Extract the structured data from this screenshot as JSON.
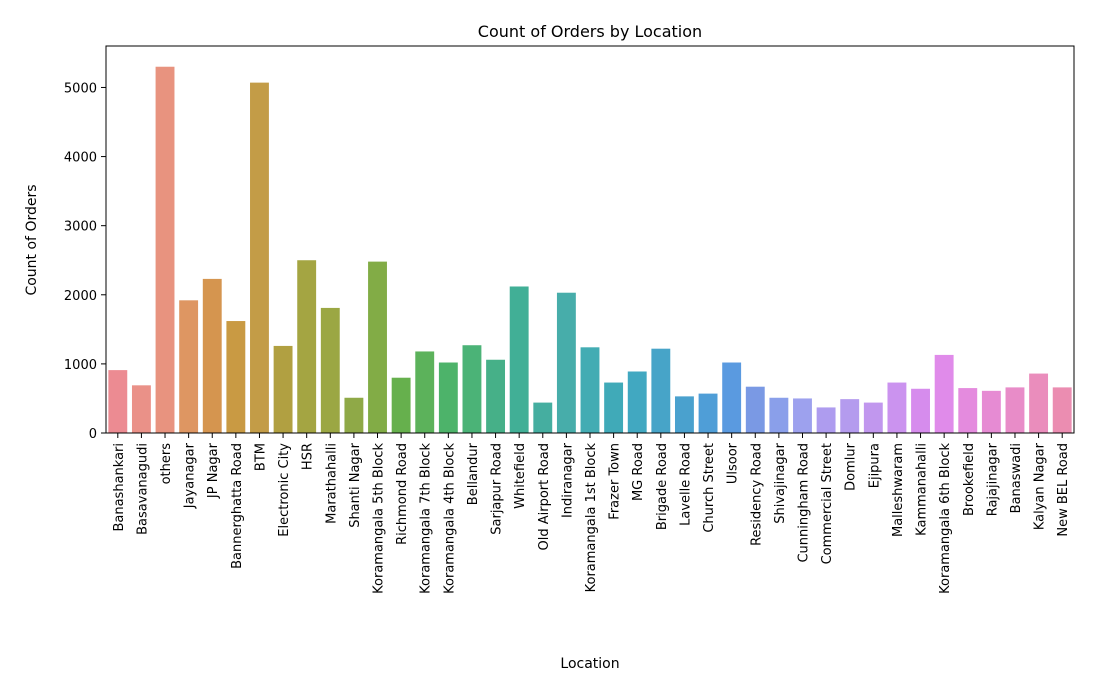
{
  "chart_data": {
    "type": "bar",
    "title": "Count of Orders by Location",
    "xlabel": "Location",
    "ylabel": "Count of Orders",
    "ylim": [
      0,
      5600
    ],
    "yticks": [
      0,
      1000,
      2000,
      3000,
      4000,
      5000
    ],
    "grid": false,
    "legend": "none",
    "categories": [
      "Banashankari",
      "Basavanagudi",
      "others",
      "Jayanagar",
      "JP Nagar",
      "Bannerghatta Road",
      "BTM",
      "Electronic City",
      "HSR",
      "Marathahalli",
      "Shanti Nagar",
      "Koramangala 5th Block",
      "Richmond Road",
      "Koramangala 7th Block",
      "Koramangala 4th Block",
      "Bellandur",
      "Sarjapur Road",
      "Whitefield",
      "Old Airport Road",
      "Indiranagar",
      "Koramangala 1st Block",
      "Frazer Town",
      "MG Road",
      "Brigade Road",
      "Lavelle Road",
      "Church Street",
      "Ulsoor",
      "Residency Road",
      "Shivajinagar",
      "Cunningham Road",
      "Commercial Street",
      "Domlur",
      "Ejipura",
      "Malleshwaram",
      "Kammanahalli",
      "Koramangala 6th Block",
      "Brookefield",
      "Rajajinagar",
      "Banaswadi",
      "Kalyan Nagar",
      "New BEL Road"
    ],
    "values": [
      910,
      690,
      5300,
      1920,
      2230,
      1620,
      5070,
      1260,
      2500,
      1810,
      510,
      2480,
      800,
      1180,
      1020,
      1270,
      1060,
      2120,
      440,
      2030,
      1240,
      730,
      890,
      1220,
      530,
      570,
      1020,
      670,
      510,
      500,
      370,
      490,
      440,
      730,
      640,
      1130,
      650,
      610,
      660,
      860,
      660
    ],
    "colors": [
      "#ec8b92",
      "#ea9188",
      "#e8937f",
      "#de9662",
      "#d5954f",
      "#c99a43",
      "#c39c47",
      "#b1a041",
      "#a4a542",
      "#9ba743",
      "#8fa947",
      "#82ac46",
      "#66b04d",
      "#5cb25b",
      "#4db36a",
      "#4bb377",
      "#46b088",
      "#41af96",
      "#45aea0",
      "#47adaa",
      "#43acb3",
      "#40aab8",
      "#41a8c1",
      "#47a4c8",
      "#4aa1ce",
      "#4f9ed7",
      "#5a9ae0",
      "#7a99e4",
      "#8a9fea",
      "#9da1ee",
      "#ae9cef",
      "#b49bee",
      "#c197ee",
      "#cb93ef",
      "#d68ced",
      "#e08bea",
      "#e48bde",
      "#e68bd3",
      "#e88cc8",
      "#ea8dbc",
      "#eb8db1"
    ]
  }
}
